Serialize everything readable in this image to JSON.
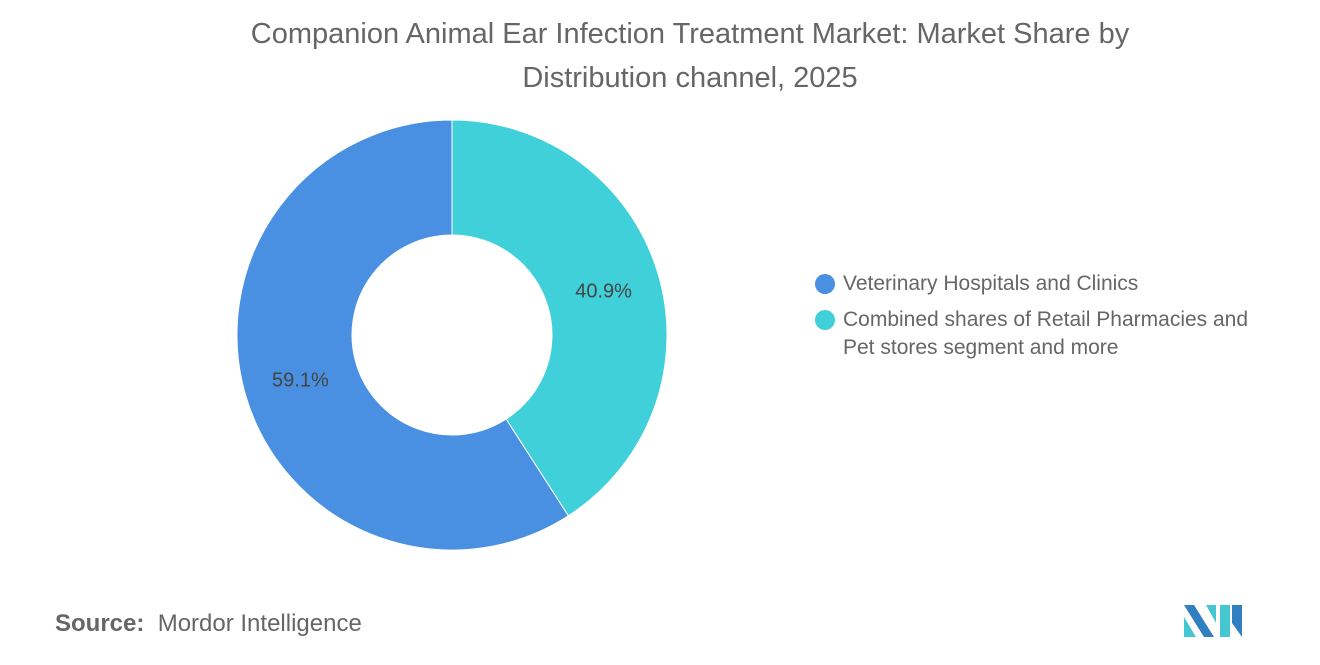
{
  "chart_data": {
    "type": "pie",
    "donut": true,
    "title": "Companion Animal Ear Infection Treatment Market: Market Share by Distribution channel, 2025",
    "slices": [
      {
        "name": "Combined shares of Retail Pharmacies and Pet stores segment and more",
        "value": 40.9,
        "label": "40.9%",
        "color": "#40D0DA"
      },
      {
        "name": "Veterinary Hospitals and Clinics",
        "value": 59.1,
        "label": "59.1%",
        "color": "#4A90E2"
      }
    ],
    "legend": {
      "placement": "right",
      "items": [
        {
          "label": "Veterinary Hospitals and Clinics",
          "color": "#4A90E2"
        },
        {
          "label": "Combined shares of Retail Pharmacies and Pet stores segment and more",
          "color": "#40D0DA"
        }
      ]
    }
  },
  "source": {
    "label": "Source:",
    "value": "Mordor Intelligence"
  },
  "logo": {
    "text": "Mordor Intelligence"
  }
}
